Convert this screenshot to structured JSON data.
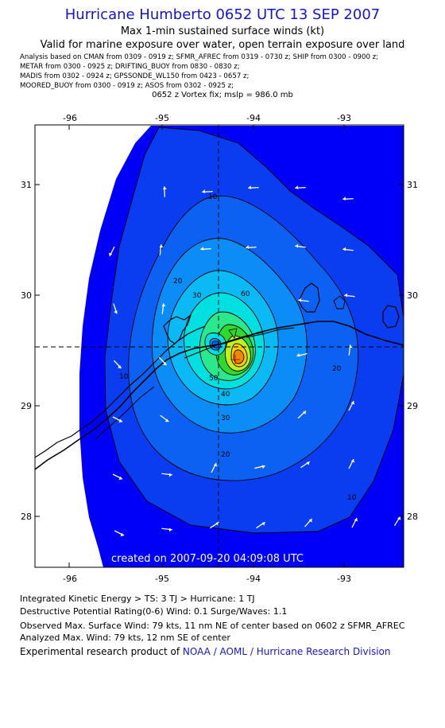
{
  "header": {
    "title": "Hurricane Humberto 0652 UTC 13 SEP 2007",
    "subtitle": "Max 1-min sustained surface winds (kt)",
    "validity": "Valid for marine exposure over water, open terrain exposure over land",
    "analysis_lines": [
      "Analysis based on  CMAN from 0309 - 0919 z;  SFMR_AFREC from 0319 - 0730 z;  SHIP from 0300 - 0900 z;",
      "METAR from 0300 - 0925 z;  DRIFTING_BUOY from 0830 - 0830 z;",
      "MADIS from 0302 - 0924 z;  GPSSONDE_WL150 from 0423 - 0657 z;",
      "MOORED_BUOY from 0300 - 0919 z;  ASOS from 0302 - 0925 z;"
    ],
    "vortex_fix": "0652 z Vortex fix; mslp = 986.0 mb"
  },
  "map": {
    "lon_ticks": [
      "-96",
      "-95",
      "-94",
      "-93"
    ],
    "lat_ticks": [
      "31",
      "30",
      "29",
      "28"
    ],
    "contour_labels": [
      "10",
      "20",
      "30",
      "40",
      "50",
      "60",
      "10",
      "20",
      "30",
      "10",
      "20"
    ],
    "created_stamp": "created on 2007-09-20 04:09:08 UTC",
    "colors": {
      "background_field": "#0000f8",
      "contour_10": "#0a3cf0",
      "contour_20": "#0c60f2",
      "contour_30": "#0b8cf6",
      "contour_40": "#0bbaf4",
      "contour_50": "#00e0e0",
      "contour_60": "#2be88c",
      "contour_65": "#30d830",
      "contour_70": "#c0f020",
      "contour_75": "#f8d000",
      "contour_79": "#f08800",
      "arrows": "#ffffff",
      "crosshair": "#000000"
    }
  },
  "footer": {
    "ike": "Integrated Kinetic Energy > TS: 3 TJ   > Hurricane: 1 TJ",
    "drr": "Destructive Potential Rating(0-6)   Wind: 0.1 Surge/Waves: 1.1",
    "observed": "Observed Max. Surface Wind: 79 kts, 11 nm NE of center based on 0602 z SFMR_AFREC",
    "analyzed": "Analyzed Max. Wind: 79 kts, 12 nm SE of center",
    "credit_prefix": "Experimental research product of ",
    "credit_org": "NOAA / AOML / Hurricane Research Division"
  }
}
